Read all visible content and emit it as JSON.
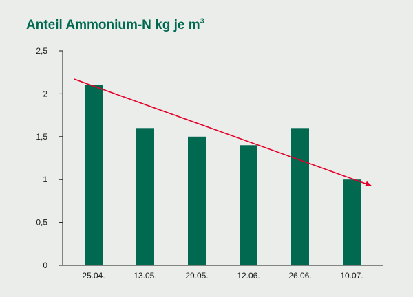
{
  "chart_data": {
    "type": "bar",
    "title": "Anteil Ammonium-N kg je m",
    "title_superscript": "3",
    "categories": [
      "25.04.",
      "13.05.",
      "29.05.",
      "12.06.",
      "26.06.",
      "10.07."
    ],
    "values": [
      2.1,
      1.6,
      1.5,
      1.4,
      1.6,
      1.0
    ],
    "ylim": [
      0,
      2.5
    ],
    "yticks": [
      0,
      0.5,
      1,
      1.5,
      2,
      2.5
    ],
    "ytick_labels": [
      "0",
      "0,5",
      "1",
      "1,5",
      "2",
      "2,5"
    ],
    "xlabel": "",
    "ylabel": "",
    "grid": false,
    "legend": "none",
    "bar_color": "#00694f",
    "trend_line": {
      "color": "#e2002a",
      "start": {
        "x": "25.04.",
        "y": 2.17
      },
      "end": {
        "x": "10.07.",
        "y": 0.93
      },
      "arrow": true
    }
  }
}
